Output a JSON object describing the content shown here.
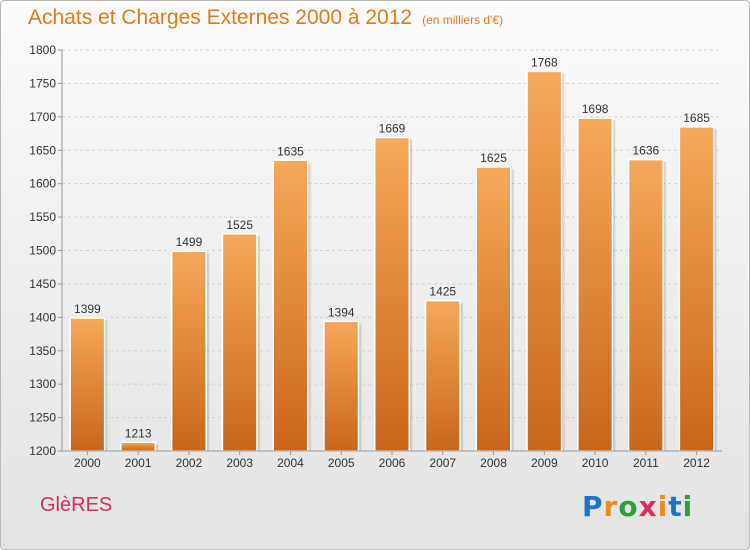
{
  "title": "Achats et Charges Externes 2000 à 2012",
  "subtitle": "(en milliers d'€)",
  "commune": "GlèRES",
  "logo": {
    "letters": [
      "P",
      "r",
      "o",
      "x",
      "i",
      "t",
      "i"
    ],
    "colors": [
      "#1e73c8",
      "#e8901e",
      "#2e9d3a",
      "#d4305c",
      "#e8901e",
      "#1e73c8",
      "#2e9d3a"
    ]
  },
  "colors": {
    "bar_light": "#f6a85a",
    "bar_dark": "#c8661a",
    "title": "#e07b1a"
  },
  "chart_data": {
    "type": "bar",
    "title": "Achats et Charges Externes 2000 à 2012",
    "subtitle": "(en milliers d'€)",
    "categories": [
      "2000",
      "2001",
      "2002",
      "2003",
      "2004",
      "2005",
      "2006",
      "2007",
      "2008",
      "2009",
      "2010",
      "2011",
      "2012"
    ],
    "values": [
      1399,
      1213,
      1499,
      1525,
      1635,
      1394,
      1669,
      1425,
      1625,
      1768,
      1698,
      1636,
      1685
    ],
    "ylim": [
      1200,
      1800
    ],
    "yticks": [
      1200,
      1250,
      1300,
      1350,
      1400,
      1450,
      1500,
      1550,
      1600,
      1650,
      1700,
      1750,
      1800
    ],
    "grid": true,
    "data_labels": true
  }
}
